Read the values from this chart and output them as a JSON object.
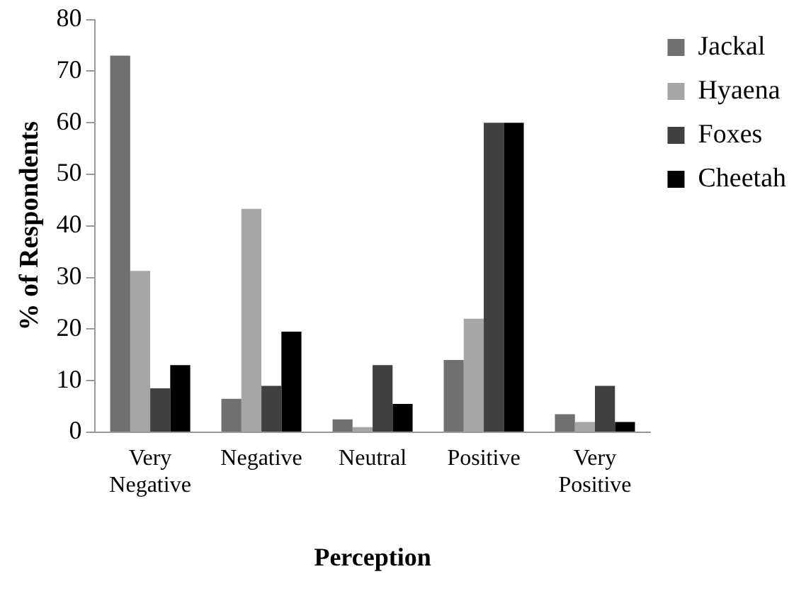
{
  "chart_data": {
    "type": "bar",
    "xlabel": "Perception",
    "ylabel": "% of Respondents",
    "categories": [
      "Very Negative",
      "Negative",
      "Neutral",
      "Positive",
      "Very Positive"
    ],
    "series": [
      {
        "name": "Jackal",
        "color": "#707070",
        "values": [
          73,
          6.5,
          2.5,
          14,
          3.5
        ]
      },
      {
        "name": "Hyaena",
        "color": "#a6a6a6",
        "values": [
          31.3,
          43.3,
          1,
          22,
          2
        ]
      },
      {
        "name": "Foxes",
        "color": "#404040",
        "values": [
          8.5,
          9,
          13,
          60,
          9
        ]
      },
      {
        "name": "Cheetah",
        "color": "#000000",
        "values": [
          13,
          19.5,
          5.5,
          60,
          2
        ]
      }
    ],
    "ylim": [
      0,
      80
    ],
    "yticks": [
      0,
      10,
      20,
      30,
      40,
      50,
      60,
      70,
      80
    ],
    "grid": false,
    "legend": "top right"
  }
}
